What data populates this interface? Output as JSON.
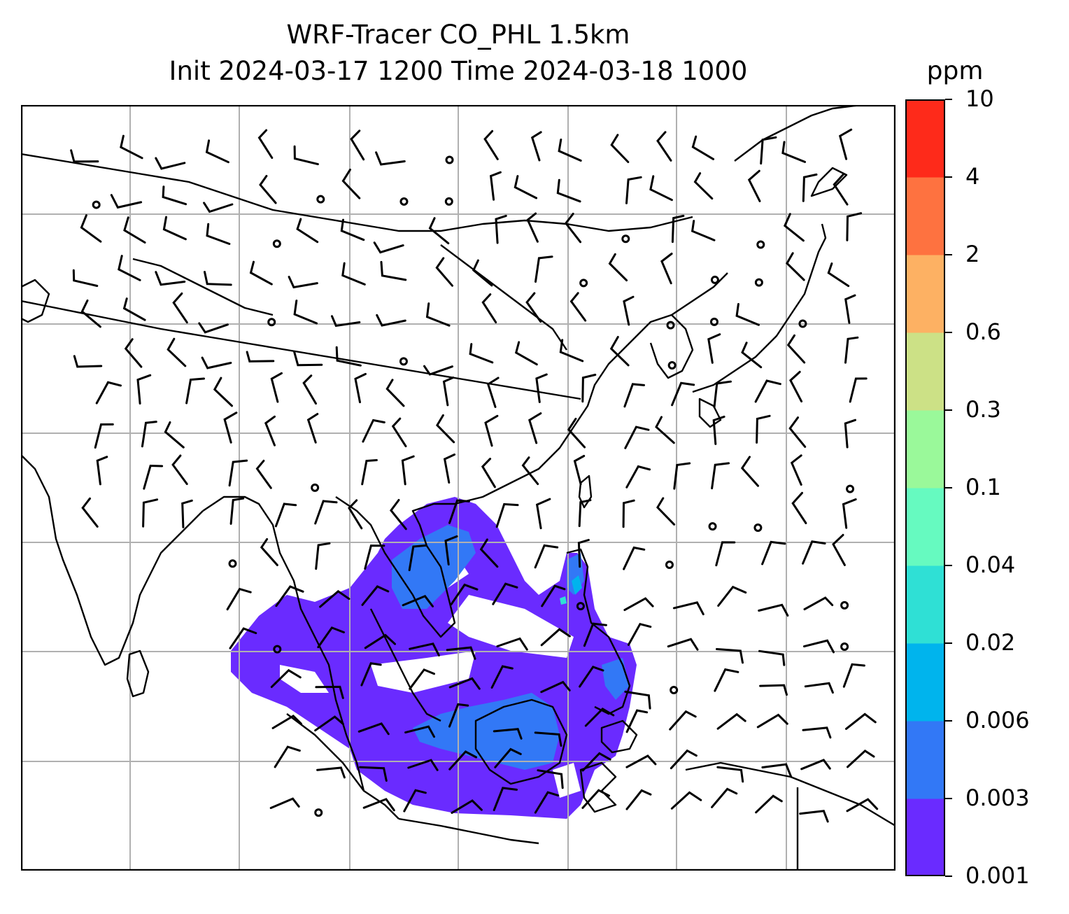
{
  "header": {
    "title_line1": "WRF-Tracer CO_PHL 1.5km",
    "title_line2": "Init 2024-03-17 1200 Time 2024-03-18 1000"
  },
  "colorbar": {
    "unit": "ppm",
    "levels": [
      "0.001",
      "0.003",
      "0.006",
      "0.02",
      "0.04",
      "0.1",
      "0.3",
      "0.6",
      "2",
      "4",
      "10"
    ],
    "colors": [
      "#6a2bff",
      "#3278f6",
      "#00b4ed",
      "#2fe0d5",
      "#66fac0",
      "#9af99a",
      "#cce186",
      "#fdb163",
      "#fe7240",
      "#fe2a1a"
    ]
  },
  "map": {
    "gridlines": "on",
    "land_outline_color": "#000000",
    "gridline_color": "#b0b0b0",
    "wind_barbs": "on",
    "calm_markers": "on"
  }
}
